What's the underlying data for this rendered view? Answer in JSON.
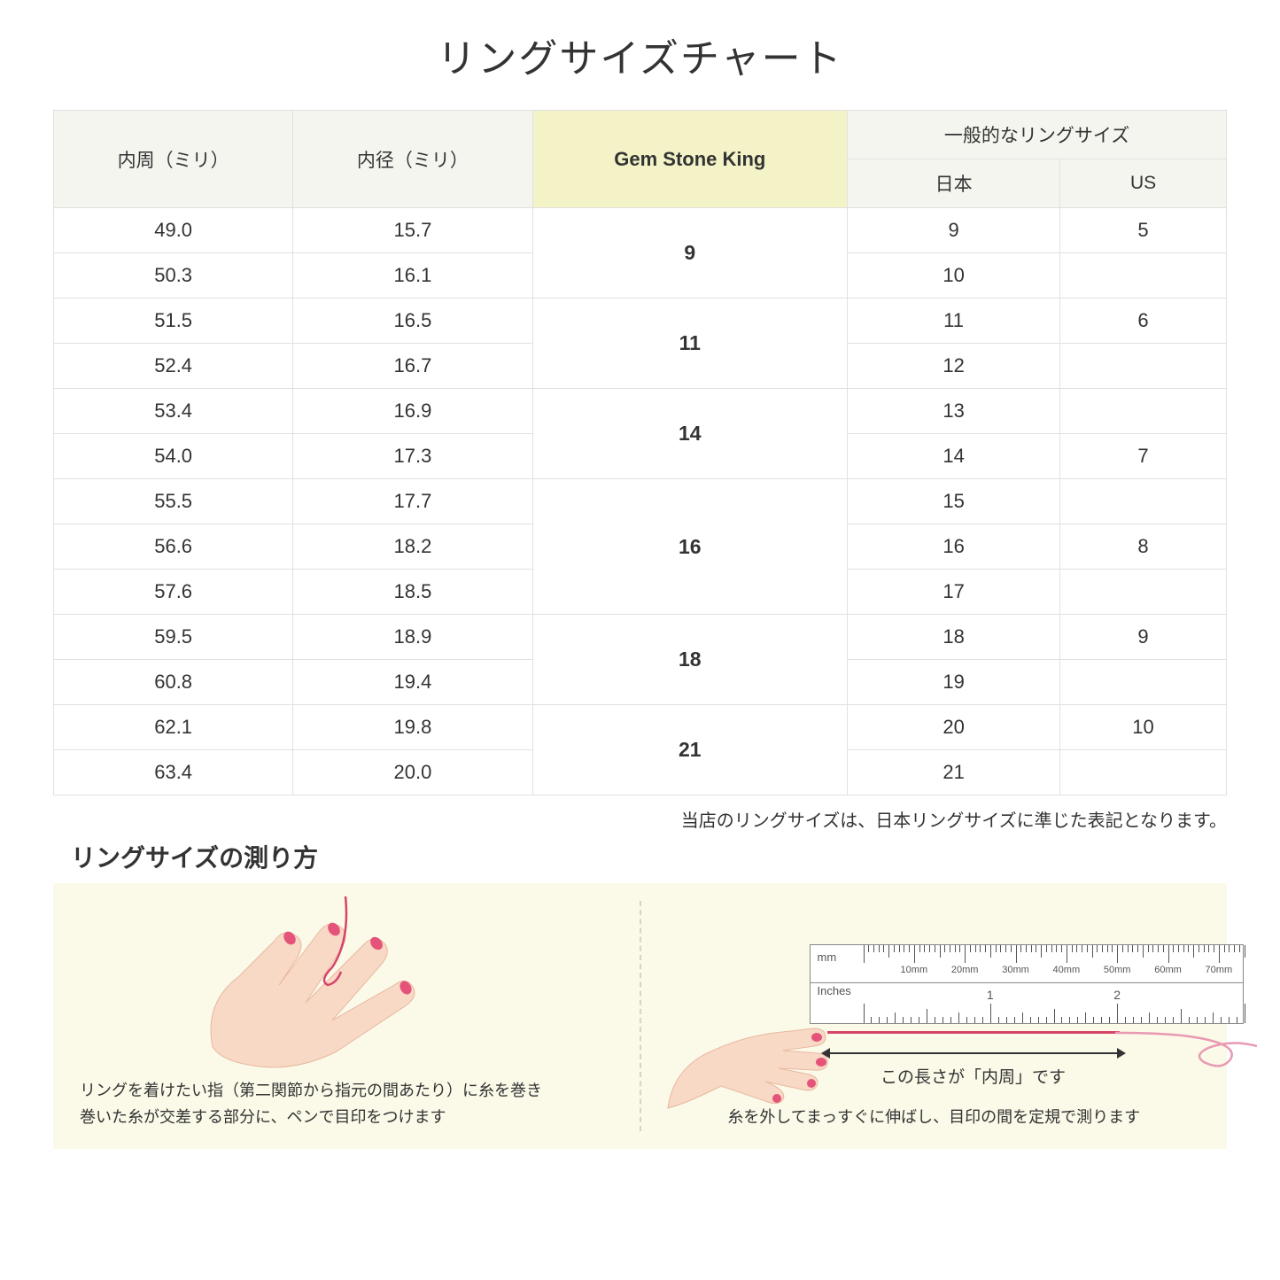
{
  "title": "リングサイズチャート",
  "table": {
    "headers": {
      "circumference": "内周（ミリ）",
      "diameter": "内径（ミリ）",
      "gsk": "Gem Stone King",
      "general": "一般的なリングサイズ",
      "japan": "日本",
      "us": "US"
    },
    "groups": [
      {
        "gsk": "9",
        "rows": [
          {
            "c": "49.0",
            "d": "15.7",
            "jp": "9",
            "us": "5"
          },
          {
            "c": "50.3",
            "d": "16.1",
            "jp": "10",
            "us": ""
          }
        ]
      },
      {
        "gsk": "11",
        "rows": [
          {
            "c": "51.5",
            "d": "16.5",
            "jp": "11",
            "us": "6"
          },
          {
            "c": "52.4",
            "d": "16.7",
            "jp": "12",
            "us": ""
          }
        ]
      },
      {
        "gsk": "14",
        "rows": [
          {
            "c": "53.4",
            "d": "16.9",
            "jp": "13",
            "us": ""
          },
          {
            "c": "54.0",
            "d": "17.3",
            "jp": "14",
            "us": "7"
          }
        ]
      },
      {
        "gsk": "16",
        "rows": [
          {
            "c": "55.5",
            "d": "17.7",
            "jp": "15",
            "us": ""
          },
          {
            "c": "56.6",
            "d": "18.2",
            "jp": "16",
            "us": "8"
          },
          {
            "c": "57.6",
            "d": "18.5",
            "jp": "17",
            "us": ""
          }
        ]
      },
      {
        "gsk": "18",
        "rows": [
          {
            "c": "59.5",
            "d": "18.9",
            "jp": "18",
            "us": "9"
          },
          {
            "c": "60.8",
            "d": "19.4",
            "jp": "19",
            "us": ""
          }
        ]
      },
      {
        "gsk": "21",
        "rows": [
          {
            "c": "62.1",
            "d": "19.8",
            "jp": "20",
            "us": "10"
          },
          {
            "c": "63.4",
            "d": "20.0",
            "jp": "21",
            "us": ""
          }
        ]
      }
    ]
  },
  "note": "当店のリングサイズは、日本リングサイズに準じた表記となります。",
  "howto": {
    "title": "リングサイズの測り方",
    "left_caption": "リングを着けたい指（第二関節から指元の間あたり）に糸を巻き\n巻いた糸が交差する部分に、ペンで目印をつけます",
    "right_caption": "糸を外してまっすぐに伸ばし、目印の間を定規で測ります",
    "arrow_label": "この長さが「内周」です",
    "ruler": {
      "mm_label": "mm",
      "mm_ticks": [
        "10mm",
        "20mm",
        "30mm",
        "40mm",
        "50mm",
        "60mm",
        "70mm"
      ],
      "inches_label": "Inches",
      "inch_ticks": [
        "1",
        "2"
      ]
    }
  },
  "colors": {
    "header_bg": "#f5f5f0",
    "highlight_bg": "#f4f3c8",
    "border": "#e0e0e0",
    "howto_bg": "#fbf9e8",
    "skin": "#f8d9c5",
    "nail": "#e6537a",
    "thread": "#d6446a"
  }
}
